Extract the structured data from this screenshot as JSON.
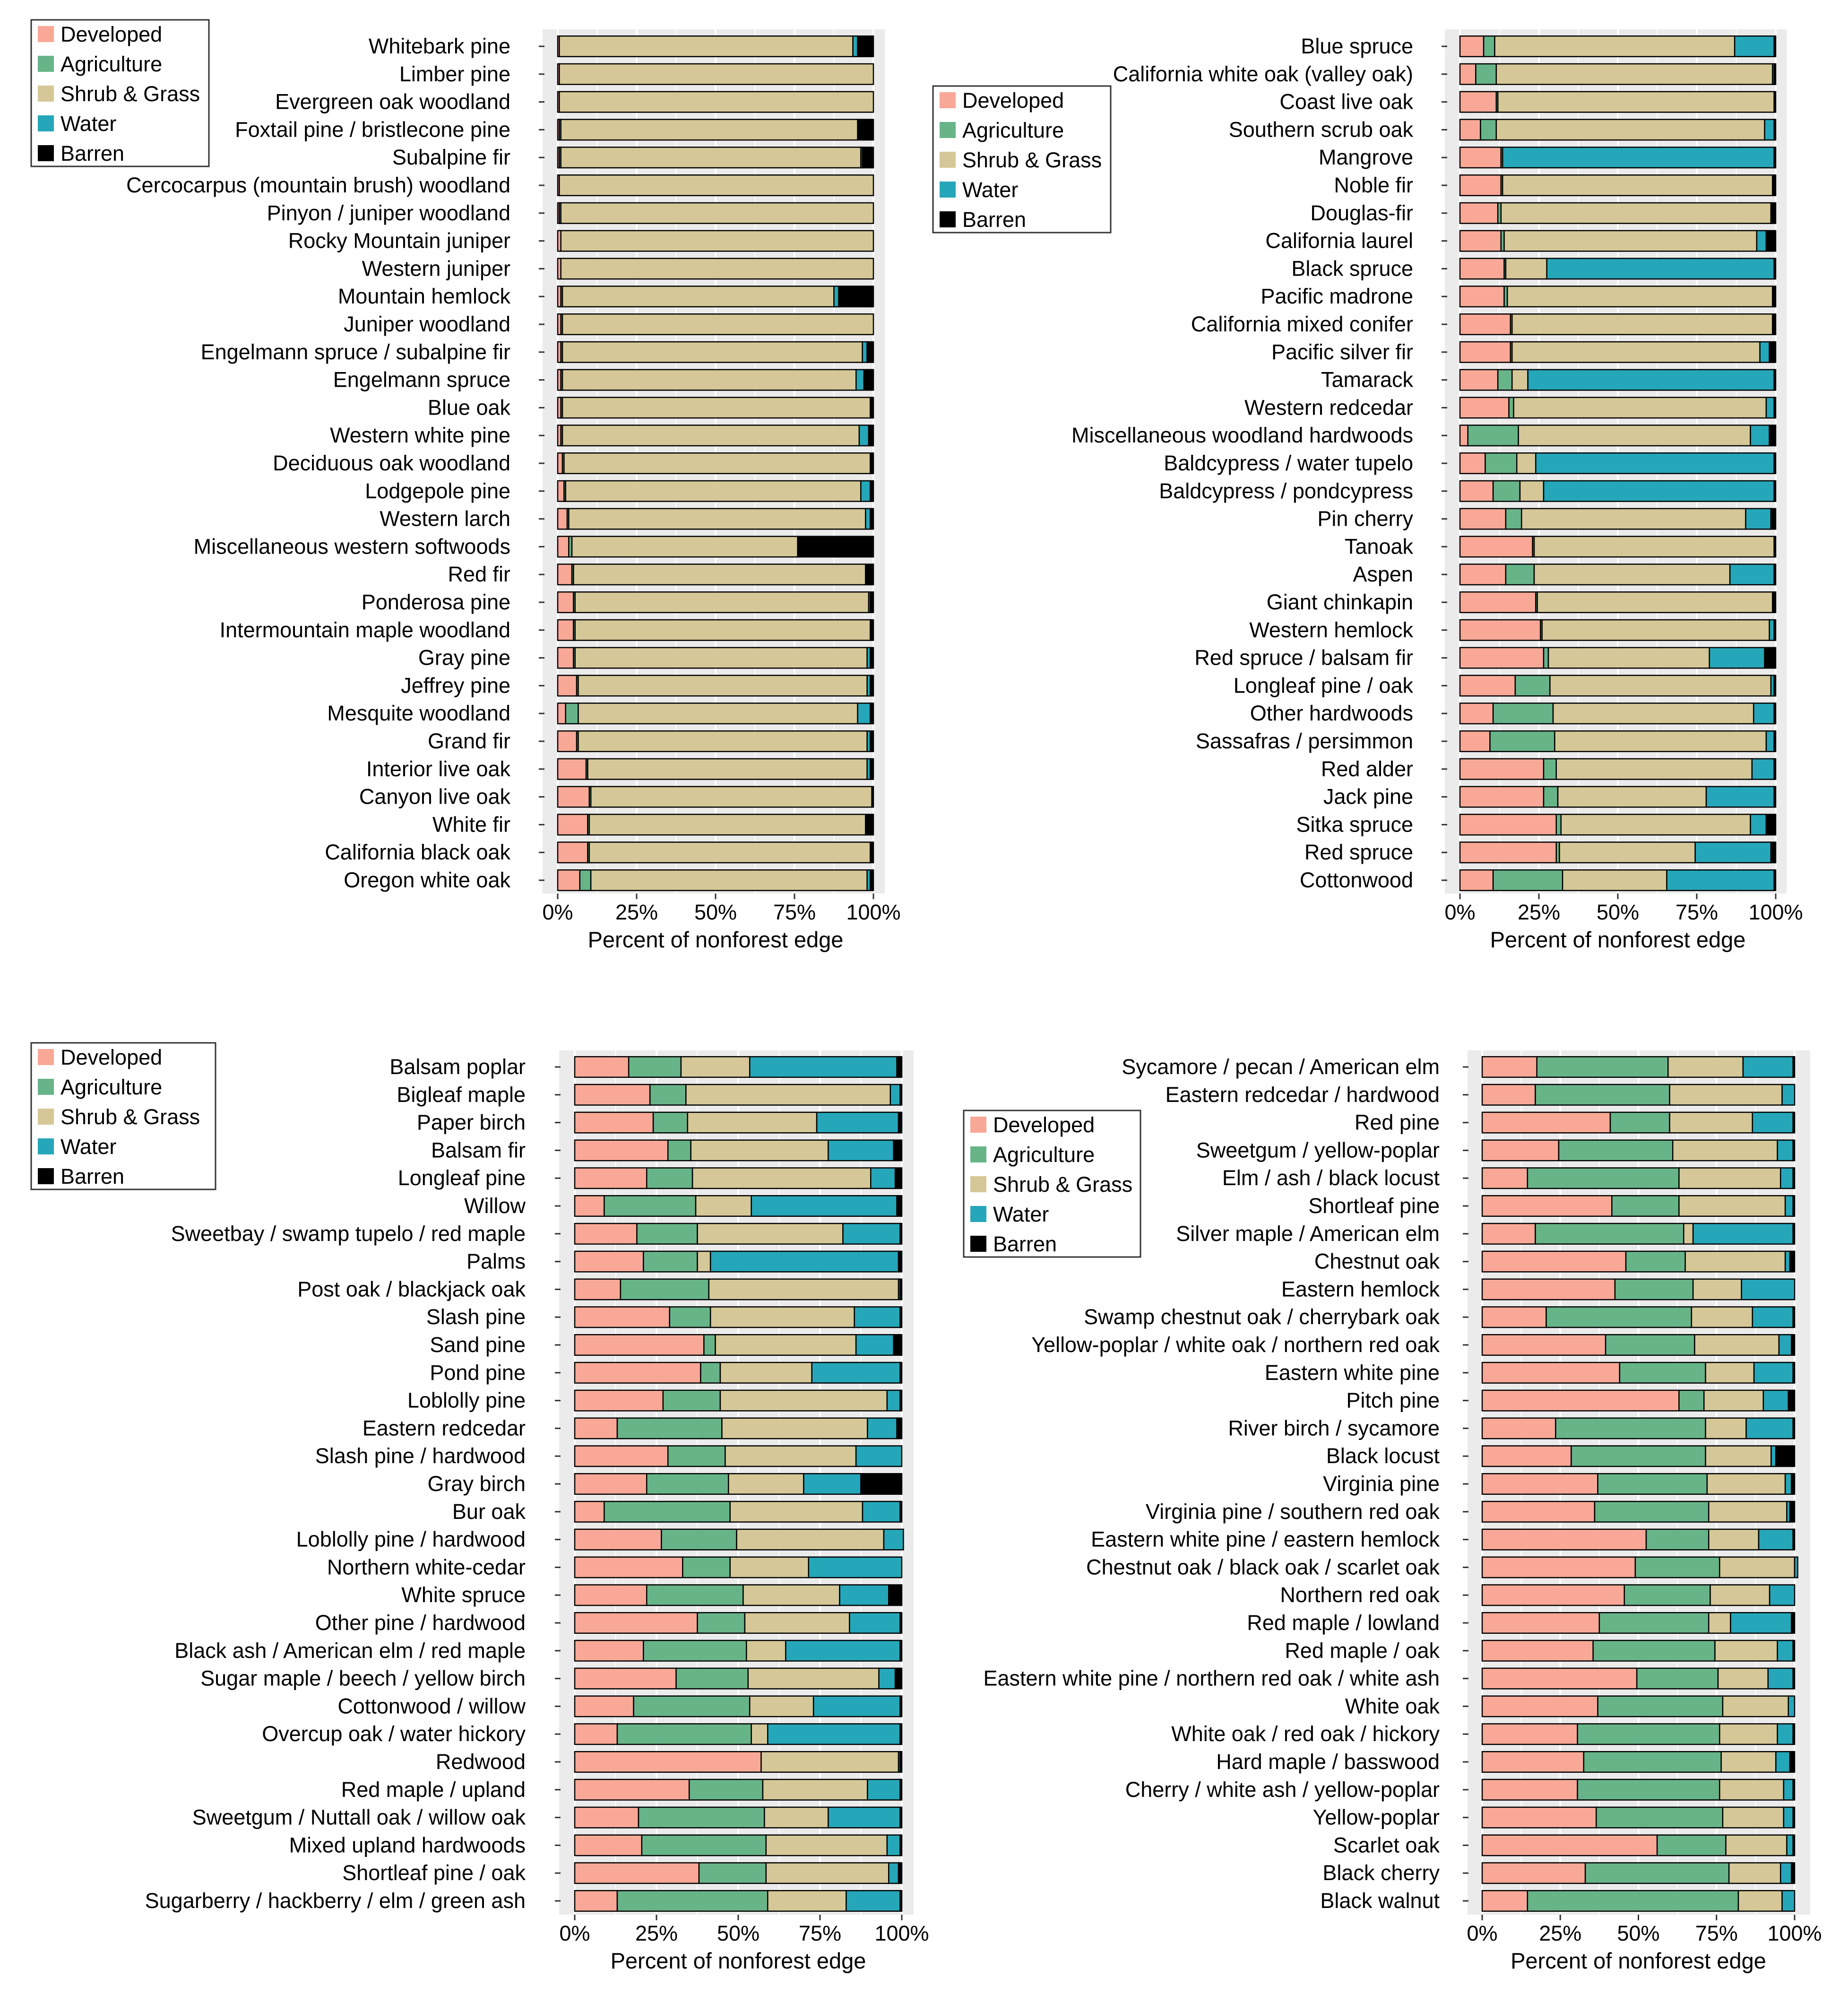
{
  "colors": {
    "Developed": "#F9A897",
    "Agriculture": "#67B489",
    "Shrub & Grass": "#D5C797",
    "Water": "#26A6B9",
    "Barren": "#000000",
    "panel_bg": "#EBEBEB",
    "grid": "#FFFFFF",
    "bar_outline": "#000000",
    "text": "#000000"
  },
  "legend_labels": [
    "Developed",
    "Agriculture",
    "Shrub & Grass",
    "Water",
    "Barren"
  ],
  "xlabel": "Percent of nonforest edge",
  "xtick_labels": [
    "0%",
    "25%",
    "50%",
    "75%",
    "100%"
  ],
  "chart_data": [
    {
      "type": "bar",
      "orientation": "horizontal",
      "stacked": true,
      "xlabel": "Percent of nonforest edge",
      "xlim": [
        0,
        100
      ],
      "legend": "top-left",
      "grid": true,
      "segments": [
        "Developed",
        "Agriculture",
        "Shrub & Grass",
        "Water",
        "Barren"
      ],
      "categories": [
        "Whitebark pine",
        "Limber pine",
        "Evergreen oak woodland",
        "Foxtail pine / bristlecone pine",
        "Subalpine fir",
        "Cercocarpus (mountain brush) woodland",
        "Pinyon / juniper woodland",
        "Rocky Mountain juniper",
        "Western juniper",
        "Mountain hemlock",
        "Juniper woodland",
        "Engelmann spruce / subalpine fir",
        "Engelmann spruce",
        "Blue oak",
        "Western white pine",
        "Deciduous oak woodland",
        "Lodgepole pine",
        "Western larch",
        "Miscellaneous western softwoods",
        "Red fir",
        "Ponderosa pine",
        "Intermountain maple woodland",
        "Gray pine",
        "Jeffrey pine",
        "Mesquite woodland",
        "Grand fir",
        "Interior live oak",
        "Canyon live oak",
        "White fir",
        "California black oak",
        "Oregon white oak"
      ],
      "values": [
        [
          0.5,
          0,
          93,
          1.5,
          5
        ],
        [
          0.5,
          0,
          99.5,
          0,
          0
        ],
        [
          0.5,
          0,
          99.5,
          0,
          0
        ],
        [
          0.5,
          0.5,
          94,
          0,
          5
        ],
        [
          0.5,
          0.5,
          95,
          0.5,
          3.5
        ],
        [
          0.5,
          0,
          99.5,
          0,
          0
        ],
        [
          0.5,
          0.5,
          99,
          0,
          0
        ],
        [
          1,
          0,
          99,
          0,
          0
        ],
        [
          1,
          0,
          99,
          0,
          0
        ],
        [
          1,
          0.5,
          86,
          1.5,
          11
        ],
        [
          1,
          0.5,
          98.5,
          0,
          0
        ],
        [
          1,
          0.5,
          95,
          1.5,
          2
        ],
        [
          1,
          0.5,
          93,
          2.5,
          3
        ],
        [
          1,
          0.5,
          97.5,
          0,
          1
        ],
        [
          1,
          0.5,
          94,
          3,
          1.5
        ],
        [
          1.5,
          0.5,
          97,
          0,
          1
        ],
        [
          2,
          0.5,
          93.5,
          3,
          1
        ],
        [
          3,
          0.5,
          94,
          1.5,
          1
        ],
        [
          3.5,
          1,
          71.5,
          0,
          24
        ],
        [
          4.5,
          0.5,
          92.5,
          0,
          2.5
        ],
        [
          5,
          0.5,
          93,
          0.5,
          1
        ],
        [
          5,
          0.5,
          93.5,
          0,
          1
        ],
        [
          5,
          0.5,
          92.5,
          1,
          1
        ],
        [
          6,
          0.5,
          91.5,
          1,
          1
        ],
        [
          2.5,
          4,
          88.5,
          4,
          1
        ],
        [
          6,
          0.5,
          91.5,
          1,
          1
        ],
        [
          9,
          0.5,
          88.5,
          1,
          1
        ],
        [
          10,
          0.5,
          89,
          0,
          0.5
        ],
        [
          9.5,
          0.5,
          87.5,
          0,
          2.5
        ],
        [
          9.5,
          0.5,
          89,
          0,
          1
        ],
        [
          7,
          3.5,
          87.5,
          1,
          1
        ]
      ]
    },
    {
      "type": "bar",
      "orientation": "horizontal",
      "stacked": true,
      "xlabel": "Percent of nonforest edge",
      "xlim": [
        0,
        100
      ],
      "legend": "top-left",
      "grid": true,
      "segments": [
        "Developed",
        "Agriculture",
        "Shrub & Grass",
        "Water",
        "Barren"
      ],
      "categories": [
        "Blue spruce",
        "California white oak (valley oak)",
        "Coast live oak",
        "Southern scrub oak",
        "Mangrove",
        "Noble fir",
        "Douglas-fir",
        "California laurel",
        "Black spruce",
        "Pacific madrone",
        "California mixed conifer",
        "Pacific silver fir",
        "Tamarack",
        "Western redcedar",
        "Miscellaneous woodland hardwoods",
        "Baldcypress / water tupelo",
        "Baldcypress / pondcypress",
        "Pin cherry",
        "Tanoak",
        "Aspen",
        "Giant chinkapin",
        "Western hemlock",
        "Red spruce / balsam fir",
        "Longleaf pine / oak",
        "Other hardwoods",
        "Sassafras / persimmon",
        "Red alder",
        "Jack pine",
        "Sitka spruce",
        "Red spruce",
        "Cottonwood"
      ],
      "values": [
        [
          7.5,
          3.5,
          76,
          12.5,
          0.5
        ],
        [
          5,
          6.5,
          87.5,
          0.5,
          0.5
        ],
        [
          11.5,
          0.5,
          87.5,
          0,
          0.5
        ],
        [
          6.5,
          5,
          85,
          3,
          0.5
        ],
        [
          13,
          0.5,
          0,
          86,
          0.5
        ],
        [
          13,
          0.5,
          85.5,
          0,
          1
        ],
        [
          12,
          1,
          85.5,
          0,
          1.5
        ],
        [
          13,
          1,
          80,
          3,
          3
        ],
        [
          14,
          0.5,
          13,
          72,
          0.5
        ],
        [
          14,
          1,
          84,
          0,
          1
        ],
        [
          16,
          0.5,
          82.5,
          0,
          1
        ],
        [
          16,
          0.5,
          78.5,
          3,
          2
        ],
        [
          12,
          4.5,
          5,
          78,
          0.5
        ],
        [
          15.5,
          1.5,
          80,
          2.5,
          0.5
        ],
        [
          2.5,
          16,
          73.5,
          6,
          2
        ],
        [
          8,
          10,
          6,
          75.5,
          0.5
        ],
        [
          10.5,
          8.5,
          7.5,
          73,
          0.5
        ],
        [
          14.5,
          5,
          71,
          8,
          1.5
        ],
        [
          23,
          0.5,
          76,
          0,
          0.5
        ],
        [
          14.5,
          9,
          62,
          14,
          0.5
        ],
        [
          24,
          0.5,
          74.5,
          0,
          1
        ],
        [
          25.5,
          0.5,
          72,
          1.5,
          0.5
        ],
        [
          26.5,
          1.5,
          51,
          17.5,
          3.5
        ],
        [
          17.5,
          11,
          70,
          1,
          0.5
        ],
        [
          10.5,
          19,
          63.5,
          6.5,
          0.5
        ],
        [
          9.5,
          20.5,
          67,
          2.5,
          0.5
        ],
        [
          26.5,
          4,
          62,
          7,
          0.5
        ],
        [
          26.5,
          4.5,
          47,
          21.5,
          0.5
        ],
        [
          30.5,
          1.5,
          60,
          5,
          3
        ],
        [
          30.5,
          1,
          43,
          24,
          1.5
        ],
        [
          10.5,
          22,
          33,
          34,
          0.5
        ]
      ]
    },
    {
      "type": "bar",
      "orientation": "horizontal",
      "stacked": true,
      "xlabel": "Percent of nonforest edge",
      "xlim": [
        0,
        100
      ],
      "legend": "top-left",
      "grid": true,
      "segments": [
        "Developed",
        "Agriculture",
        "Shrub & Grass",
        "Water",
        "Barren"
      ],
      "categories": [
        "Balsam poplar",
        "Bigleaf maple",
        "Paper birch",
        "Balsam fir",
        "Longleaf pine",
        "Willow",
        "Sweetbay / swamp tupelo / red maple",
        "Palms",
        "Post oak / blackjack oak",
        "Slash pine",
        "Sand pine",
        "Pond pine",
        "Loblolly pine",
        "Eastern redcedar",
        "Slash pine / hardwood",
        "Gray birch",
        "Bur oak",
        "Loblolly pine / hardwood",
        "Northern white-cedar",
        "White spruce",
        "Other pine / hardwood",
        "Black ash / American elm / red maple",
        "Sugar maple / beech / yellow birch",
        "Cottonwood / willow",
        "Overcup oak / water hickory",
        "Redwood",
        "Red maple / upland",
        "Sweetgum / Nuttall oak / willow oak",
        "Mixed upland hardwoods",
        "Shortleaf pine / oak",
        "Sugarberry / hackberry / elm / green ash"
      ],
      "values": [
        [
          16.5,
          16,
          21,
          45,
          1.5
        ],
        [
          23,
          11,
          62.5,
          3,
          0.5
        ],
        [
          24,
          10.5,
          39.5,
          25,
          1
        ],
        [
          28.5,
          7,
          42,
          20,
          2.5
        ],
        [
          22,
          14,
          54.5,
          7.5,
          2
        ],
        [
          9,
          28,
          17,
          44.5,
          1.5
        ],
        [
          19,
          18.5,
          44.5,
          17.5,
          0.5
        ],
        [
          21,
          16.5,
          4,
          57.5,
          1
        ],
        [
          14,
          27,
          58,
          0.5,
          0.5
        ],
        [
          29,
          12.5,
          44,
          14,
          0.5
        ],
        [
          39.5,
          3.5,
          43,
          11.5,
          2.5
        ],
        [
          38.5,
          6,
          28,
          27,
          0.5
        ],
        [
          27,
          17.5,
          51,
          4,
          0.5
        ],
        [
          13,
          32,
          44.5,
          9,
          1.5
        ],
        [
          28.5,
          17.5,
          40,
          14,
          0
        ],
        [
          22,
          25,
          23,
          17.5,
          12.5
        ],
        [
          9,
          38.5,
          40.5,
          11.5,
          0.5
        ],
        [
          26.5,
          23,
          45,
          6,
          0
        ],
        [
          33,
          14.5,
          24,
          28.5,
          0
        ],
        [
          22,
          29.5,
          29.5,
          15,
          4
        ],
        [
          37.5,
          14.5,
          32,
          15.5,
          0.5
        ],
        [
          21,
          31.5,
          12,
          35,
          0.5
        ],
        [
          31,
          22,
          40,
          5,
          2
        ],
        [
          18,
          35.5,
          19.5,
          26.5,
          0.5
        ],
        [
          13,
          41,
          5,
          40.5,
          0.5
        ],
        [
          57,
          0,
          42,
          0.5,
          0.5
        ],
        [
          35,
          22.5,
          32,
          10,
          0.5
        ],
        [
          19.5,
          38.5,
          19.5,
          22,
          0.5
        ],
        [
          20.5,
          38,
          37,
          4,
          0.5
        ],
        [
          38,
          20.5,
          37.5,
          3,
          1
        ],
        [
          13,
          46,
          24,
          16.5,
          0.5
        ]
      ]
    },
    {
      "type": "bar",
      "orientation": "horizontal",
      "stacked": true,
      "xlabel": "Percent of nonforest edge",
      "xlim": [
        0,
        100
      ],
      "legend": "top-left",
      "grid": true,
      "segments": [
        "Developed",
        "Agriculture",
        "Shrub & Grass",
        "Water",
        "Barren"
      ],
      "categories": [
        "Sycamore / pecan / American elm",
        "Eastern redcedar / hardwood",
        "Red pine",
        "Sweetgum / yellow-poplar",
        "Elm / ash / black locust",
        "Shortleaf pine",
        "Silver maple / American elm",
        "Chestnut oak",
        "Eastern hemlock",
        "Swamp chestnut oak / cherrybark oak",
        "Yellow-poplar / white oak / northern red oak",
        "Eastern white pine",
        "Pitch pine",
        "River birch / sycamore",
        "Black locust",
        "Virginia pine",
        "Virginia pine / southern red oak",
        "Eastern white pine / eastern hemlock",
        "Chestnut oak / black oak / scarlet oak",
        "Northern red oak",
        "Red maple / lowland",
        "Red maple / oak",
        "Eastern white pine / northern red oak / white ash",
        "White oak",
        "White oak / red oak / hickory",
        "Hard maple / basswood",
        "Cherry / white ash / yellow-poplar",
        "Yellow-poplar",
        "Scarlet oak",
        "Black cherry",
        "Black walnut"
      ],
      "values": [
        [
          17.5,
          42,
          24,
          16,
          0.5
        ],
        [
          17,
          43,
          36,
          4,
          0
        ],
        [
          41,
          19,
          26.5,
          13,
          0.5
        ],
        [
          24.5,
          36.5,
          33.5,
          5,
          0.5
        ],
        [
          14.5,
          48.5,
          32.5,
          4,
          0.5
        ],
        [
          41.5,
          21.5,
          34,
          2.5,
          0.5
        ],
        [
          17,
          47.5,
          3,
          32,
          0.5
        ],
        [
          46,
          19,
          32,
          1.5,
          1.5
        ],
        [
          42.5,
          25,
          15.5,
          17,
          0
        ],
        [
          20.5,
          46.5,
          19.5,
          13,
          0.5
        ],
        [
          39.5,
          28.5,
          27,
          4,
          1
        ],
        [
          44,
          27.5,
          15.5,
          12.5,
          0.5
        ],
        [
          63,
          8,
          19,
          8,
          2
        ],
        [
          23.5,
          48,
          13,
          15,
          0.5
        ],
        [
          28.5,
          43,
          21,
          1.5,
          6
        ],
        [
          37,
          35,
          25,
          2,
          1
        ],
        [
          36,
          36.5,
          25,
          1,
          1.5
        ],
        [
          52.5,
          20,
          16,
          11,
          0.5
        ],
        [
          49,
          27,
          24,
          1,
          0
        ],
        [
          45.5,
          27.5,
          19,
          8,
          0
        ],
        [
          37.5,
          35,
          7,
          19.5,
          1
        ],
        [
          35.5,
          39,
          20,
          5,
          0.5
        ],
        [
          49.5,
          26,
          16,
          8,
          0.5
        ],
        [
          37,
          40,
          21,
          2,
          0
        ],
        [
          30.5,
          45.5,
          18.5,
          5,
          0.5
        ],
        [
          32.5,
          44,
          17.5,
          4.5,
          1.5
        ],
        [
          30.5,
          45.5,
          20.5,
          3,
          0.5
        ],
        [
          36.5,
          40.5,
          19.5,
          3,
          0.5
        ],
        [
          56,
          22,
          19.5,
          2,
          0.5
        ],
        [
          33,
          46,
          16.5,
          3.5,
          1
        ],
        [
          14.5,
          67.5,
          14,
          4,
          0
        ]
      ]
    }
  ]
}
